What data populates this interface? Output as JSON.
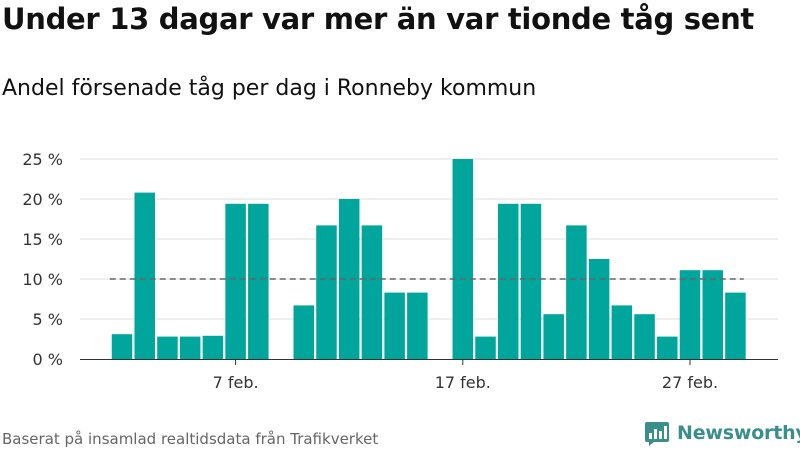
{
  "header": {
    "title": "Under 13 dagar var mer än var tionde tåg sent",
    "subtitle": "Andel försenade tåg per dag i Ronneby kommun"
  },
  "footer": {
    "source": "Baserat på insamlad realtidsdata från Trafikverket",
    "brand": "Newsworthy"
  },
  "colors": {
    "bar": "#00a59b",
    "threshold": "#666666",
    "grid": "#dddddd",
    "brand": "#3a8f8a"
  },
  "chart_data": {
    "type": "bar",
    "x": [
      "2 feb.",
      "3 feb.",
      "4 feb.",
      "5 feb.",
      "6 feb.",
      "7 feb.",
      "8 feb.",
      "9 feb.",
      "10 feb.",
      "11 feb.",
      "12 feb.",
      "13 feb.",
      "14 feb.",
      "15 feb.",
      "16 feb.",
      "17 feb.",
      "18 feb.",
      "19 feb.",
      "20 feb.",
      "21 feb.",
      "22 feb.",
      "23 feb.",
      "24 feb.",
      "25 feb.",
      "26 feb.",
      "27 feb.",
      "28 feb.",
      "29 feb."
    ],
    "values": [
      3.1,
      20.8,
      2.8,
      2.8,
      2.9,
      19.4,
      19.4,
      null,
      6.7,
      16.7,
      20.0,
      16.7,
      8.3,
      8.3,
      null,
      25.0,
      2.8,
      19.4,
      19.4,
      5.6,
      16.7,
      12.5,
      6.7,
      5.6,
      2.8,
      11.1,
      11.1,
      8.3
    ],
    "y_ticks": [
      0,
      5,
      10,
      15,
      20,
      25
    ],
    "y_tick_labels": [
      "0 %",
      "5 %",
      "10 %",
      "15 %",
      "20 %",
      "25 %"
    ],
    "x_tick_labels": [
      {
        "label": "7 feb.",
        "at": "7 feb."
      },
      {
        "label": "17 feb.",
        "at": "17 feb."
      },
      {
        "label": "27 feb.",
        "at": "27 feb."
      }
    ],
    "threshold": 10,
    "ylim": [
      0,
      25
    ],
    "grid": true
  }
}
